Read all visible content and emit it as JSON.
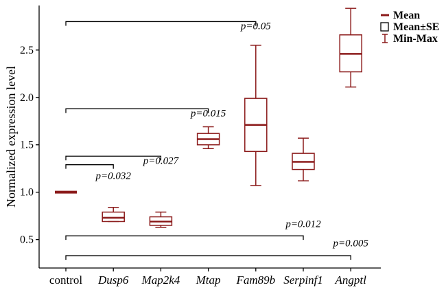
{
  "chart_data": {
    "type": "box",
    "title": "",
    "xlabel": "",
    "ylabel": "Normalized expression level",
    "ylim": [
      0.2,
      2.97
    ],
    "yticks": [
      0.5,
      1.0,
      1.5,
      2.0,
      2.5
    ],
    "ytick_labels": [
      "0.5",
      "1.0",
      "1.5",
      "2.0",
      "2.5"
    ],
    "colors": {
      "box": "#8b1a1a",
      "axis": "#000000"
    },
    "categories": [
      {
        "label": "control",
        "italic": false
      },
      {
        "label": "Dusp6",
        "italic": true
      },
      {
        "label": "Map2k4",
        "italic": true
      },
      {
        "label": "Mtap",
        "italic": true
      },
      {
        "label": "Fam89b",
        "italic": true
      },
      {
        "label": "Serpinf1",
        "italic": true
      },
      {
        "label": "Angptl",
        "italic": true
      }
    ],
    "series": [
      {
        "category": "control",
        "mean": 1.0,
        "se_low": 1.0,
        "se_high": 1.0,
        "min": 1.0,
        "max": 1.0
      },
      {
        "category": "Dusp6",
        "mean": 0.73,
        "se_low": 0.69,
        "se_high": 0.79,
        "min": 0.69,
        "max": 0.84
      },
      {
        "category": "Map2k4",
        "mean": 0.69,
        "se_low": 0.65,
        "se_high": 0.74,
        "min": 0.63,
        "max": 0.79
      },
      {
        "category": "Mtap",
        "mean": 1.56,
        "se_low": 1.5,
        "se_high": 1.62,
        "min": 1.46,
        "max": 1.69
      },
      {
        "category": "Fam89b",
        "mean": 1.71,
        "se_low": 1.43,
        "se_high": 1.99,
        "min": 1.07,
        "max": 2.55
      },
      {
        "category": "Serpinf1",
        "mean": 1.32,
        "se_low": 1.24,
        "se_high": 1.41,
        "min": 1.12,
        "max": 1.57
      },
      {
        "category": "Angptl",
        "mean": 2.46,
        "se_low": 2.27,
        "se_high": 2.66,
        "min": 2.11,
        "max": 2.94
      }
    ],
    "annotations": [
      {
        "from": "control",
        "to": "Fam89b",
        "y": 2.8,
        "label": "p=0.05",
        "label_y": 2.72,
        "label_at": "Fam89b"
      },
      {
        "from": "control",
        "to": "Mtap",
        "y": 1.88,
        "label": "p=0.015",
        "label_y": 1.8,
        "label_at": "Mtap"
      },
      {
        "from": "control",
        "to": "Map2k4",
        "y": 1.38,
        "label": "p=0.027",
        "label_y": 1.3,
        "label_at": "Map2k4"
      },
      {
        "from": "control",
        "to": "Dusp6",
        "y": 1.29,
        "label": "p=0.032",
        "label_y": 1.14,
        "label_at": "Dusp6"
      },
      {
        "from": "control",
        "to": "Serpinf1",
        "y": 0.54,
        "label": "p=0.012",
        "label_y": 0.63,
        "label_at": "Serpinf1"
      },
      {
        "from": "control",
        "to": "Angptl",
        "y": 0.33,
        "label": "p=0.005",
        "label_y": 0.43,
        "label_at": "Angptl"
      }
    ],
    "legend": {
      "position": "top-right",
      "items": [
        {
          "label": "Mean",
          "symbol": "line"
        },
        {
          "label": "Mean±SE",
          "symbol": "box"
        },
        {
          "label": "Min-Max",
          "symbol": "whisker"
        }
      ]
    },
    "grid": false
  }
}
